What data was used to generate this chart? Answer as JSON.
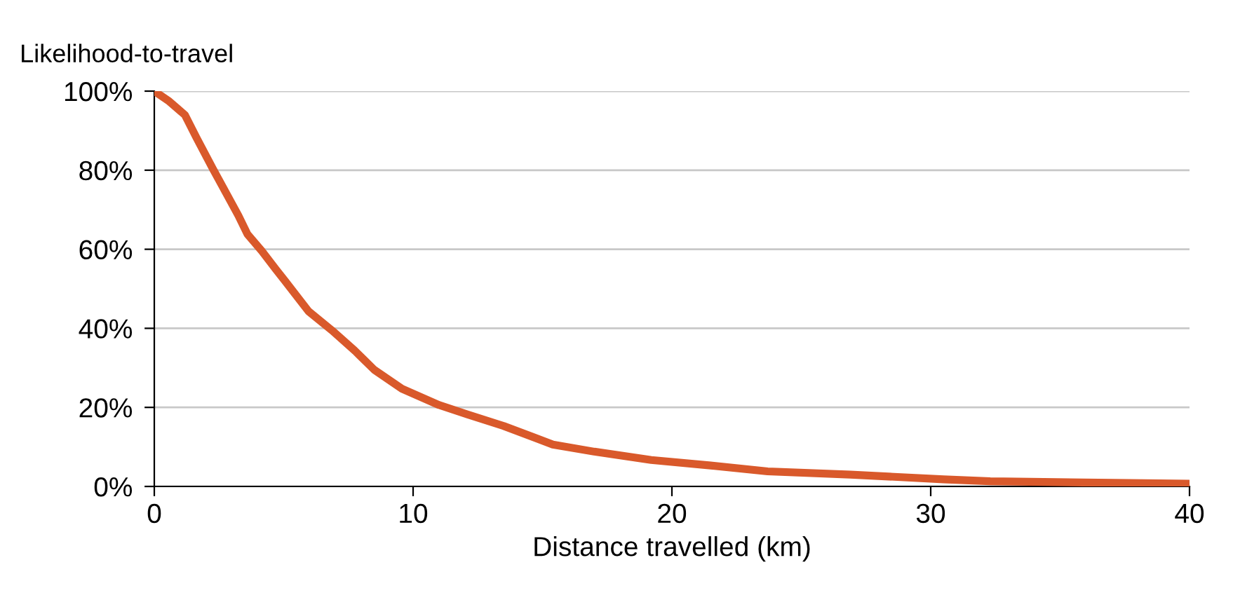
{
  "chart_data": {
    "type": "line",
    "xlabel": "Distance travelled (km)",
    "ylabel": "Likelihood-to-travel",
    "x": [
      0,
      0.54,
      1.18,
      1.63,
      2.26,
      2.8,
      3.25,
      3.6,
      4.15,
      4.7,
      5.05,
      5.96,
      6.86,
      7.77,
      8.5,
      9.57,
      11.0,
      12.1,
      13.5,
      15.4,
      17.0,
      19.2,
      21.5,
      23.7,
      26.9,
      30.5,
      32.3,
      35.9,
      40
    ],
    "series": [
      {
        "color": "#d9592b",
        "values": [
          100,
          97.6,
          94,
          88.2,
          80.4,
          73.9,
          68.5,
          63.8,
          59.6,
          54.9,
          52,
          44.3,
          39.5,
          34.2,
          29.5,
          24.7,
          20.6,
          18.2,
          15.3,
          10.6,
          8.8,
          6.7,
          5.3,
          3.8,
          3.0,
          1.8,
          1.3,
          1.0,
          0.7
        ]
      }
    ],
    "xlim": [
      0,
      40
    ],
    "xticks": [
      0,
      10,
      20,
      30,
      40
    ],
    "ylim": [
      0,
      100
    ],
    "yticks": [
      {
        "value": 0,
        "label": "0%"
      },
      {
        "value": 20,
        "label": "20%"
      },
      {
        "value": 40,
        "label": "40%"
      },
      {
        "value": 60,
        "label": "60%"
      },
      {
        "value": 80,
        "label": "80%"
      },
      {
        "value": 100,
        "label": "100%"
      }
    ],
    "grid": "y",
    "legend": false,
    "marker": "none",
    "line_style": "solid"
  }
}
